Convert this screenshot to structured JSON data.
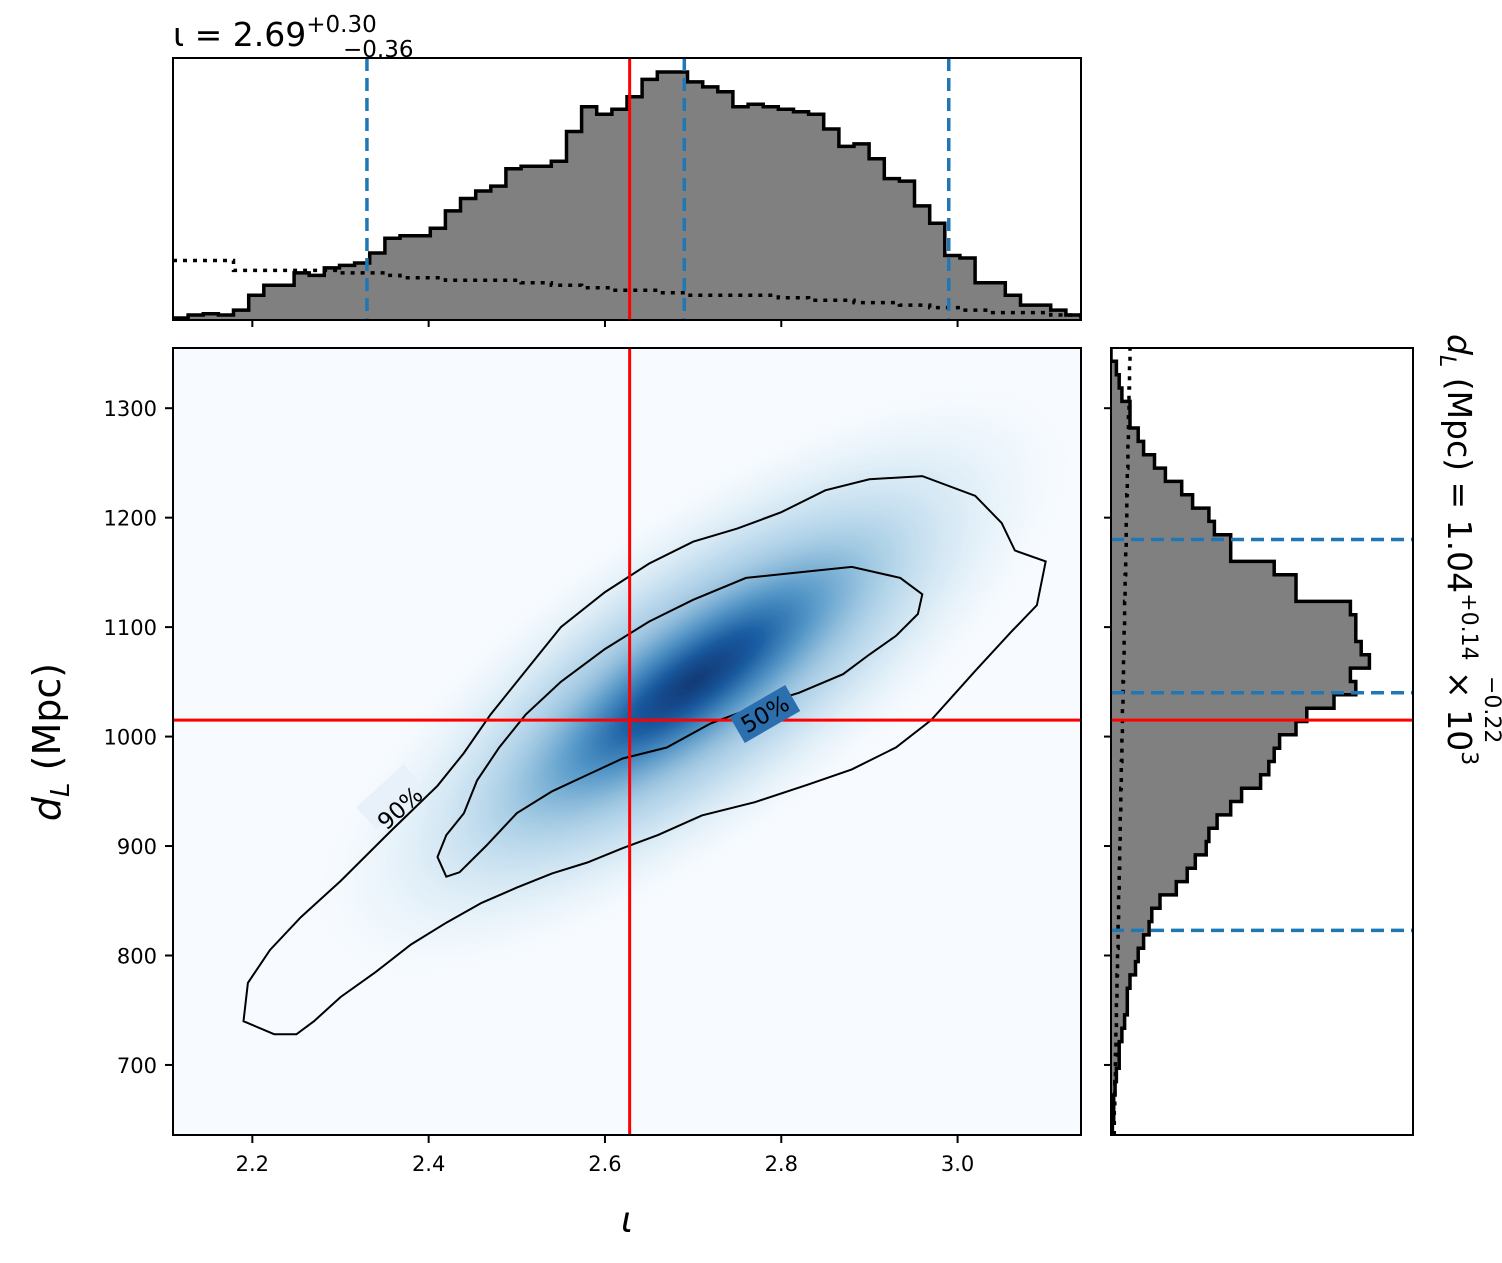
{
  "chart_data": {
    "type": "corner-plot",
    "colors": {
      "density": "#08519c",
      "histogram_fill": "#808080",
      "truth_line": "#ff0000",
      "quantile_line": "#1f77b4",
      "contour": "#000000"
    },
    "top_title": {
      "prefix": "ι = 2.69",
      "sup": "+0.30",
      "sub": "−0.36"
    },
    "right_title": {
      "prefix": "d",
      "prefix_sub": "L",
      "mid": " (Mpc) = 1.04",
      "sup": "+0.14",
      "sub": "−0.22",
      "suffix": " × 10",
      "suffix_sup": "3"
    },
    "xlabel": "ι",
    "ylabel": {
      "main": "d",
      "sub": "L",
      "rest": " (Mpc)"
    },
    "xlim": [
      2.11,
      3.14
    ],
    "ylim": [
      636,
      1355
    ],
    "xticks": [
      {
        "value": 2.2,
        "label": "2.2"
      },
      {
        "value": 2.4,
        "label": "2.4"
      },
      {
        "value": 2.6,
        "label": "2.6"
      },
      {
        "value": 2.8,
        "label": "2.8"
      },
      {
        "value": 3.0,
        "label": "3.0"
      }
    ],
    "yticks": [
      {
        "value": 700,
        "label": "700"
      },
      {
        "value": 800,
        "label": "800"
      },
      {
        "value": 900,
        "label": "900"
      },
      {
        "value": 1000,
        "label": "1000"
      },
      {
        "value": 1100,
        "label": "1100"
      },
      {
        "value": 1200,
        "label": "1200"
      },
      {
        "value": 1300,
        "label": "1300"
      }
    ],
    "truth": {
      "iota": 2.628,
      "dL": 1015
    },
    "iota_quantiles": [
      2.33,
      2.69,
      2.99
    ],
    "dL_quantiles": [
      823,
      1040,
      1180
    ],
    "contour_labels": [
      "90%",
      "50%"
    ],
    "kde_ellipse": {
      "center": [
        2.7,
        1050
      ],
      "angle_deg": 36
    },
    "contours": {
      "c90": [
        [
          2.225,
          728
        ],
        [
          2.19,
          740
        ],
        [
          2.195,
          775
        ],
        [
          2.22,
          805
        ],
        [
          2.255,
          835
        ],
        [
          2.3,
          868
        ],
        [
          2.36,
          916
        ],
        [
          2.41,
          955
        ],
        [
          2.44,
          985
        ],
        [
          2.47,
          1020
        ],
        [
          2.505,
          1055
        ],
        [
          2.55,
          1100
        ],
        [
          2.6,
          1132
        ],
        [
          2.65,
          1158
        ],
        [
          2.7,
          1178
        ],
        [
          2.75,
          1190
        ],
        [
          2.8,
          1205
        ],
        [
          2.85,
          1225
        ],
        [
          2.9,
          1235
        ],
        [
          2.96,
          1238
        ],
        [
          3.02,
          1220
        ],
        [
          3.05,
          1195
        ],
        [
          3.065,
          1170
        ],
        [
          3.1,
          1160
        ],
        [
          3.09,
          1120
        ],
        [
          3.06,
          1095
        ],
        [
          3.02,
          1060
        ],
        [
          2.97,
          1015
        ],
        [
          2.93,
          990
        ],
        [
          2.88,
          970
        ],
        [
          2.83,
          956
        ],
        [
          2.77,
          940
        ],
        [
          2.71,
          928
        ],
        [
          2.66,
          910
        ],
        [
          2.62,
          898
        ],
        [
          2.58,
          885
        ],
        [
          2.54,
          875
        ],
        [
          2.5,
          862
        ],
        [
          2.46,
          848
        ],
        [
          2.42,
          830
        ],
        [
          2.38,
          810
        ],
        [
          2.34,
          785
        ],
        [
          2.3,
          762
        ],
        [
          2.27,
          740
        ],
        [
          2.25,
          728
        ],
        [
          2.225,
          728
        ]
      ],
      "c50": [
        [
          2.42,
          872
        ],
        [
          2.41,
          890
        ],
        [
          2.42,
          910
        ],
        [
          2.44,
          930
        ],
        [
          2.455,
          960
        ],
        [
          2.48,
          990
        ],
        [
          2.51,
          1020
        ],
        [
          2.55,
          1050
        ],
        [
          2.6,
          1080
        ],
        [
          2.65,
          1105
        ],
        [
          2.7,
          1125
        ],
        [
          2.76,
          1145
        ],
        [
          2.82,
          1150
        ],
        [
          2.88,
          1155
        ],
        [
          2.935,
          1145
        ],
        [
          2.96,
          1130
        ],
        [
          2.955,
          1112
        ],
        [
          2.93,
          1092
        ],
        [
          2.9,
          1075
        ],
        [
          2.87,
          1057
        ],
        [
          2.82,
          1040
        ],
        [
          2.78,
          1030
        ],
        [
          2.72,
          1012
        ],
        [
          2.67,
          990
        ],
        [
          2.62,
          980
        ],
        [
          2.58,
          965
        ],
        [
          2.54,
          950
        ],
        [
          2.5,
          930
        ],
        [
          2.465,
          900
        ],
        [
          2.435,
          876
        ],
        [
          2.42,
          872
        ]
      ]
    },
    "top_hist": {
      "x0": 2.11,
      "x1": 3.14,
      "counts": [
        0.008,
        0.02,
        0.025,
        0.02,
        0.04,
        0.1,
        0.14,
        0.14,
        0.19,
        0.18,
        0.21,
        0.22,
        0.23,
        0.27,
        0.33,
        0.34,
        0.34,
        0.37,
        0.44,
        0.49,
        0.52,
        0.54,
        0.61,
        0.62,
        0.62,
        0.64,
        0.76,
        0.86,
        0.83,
        0.85,
        0.9,
        0.97,
        1.0,
        1.0,
        0.96,
        0.94,
        0.92,
        0.86,
        0.87,
        0.86,
        0.85,
        0.84,
        0.83,
        0.77,
        0.7,
        0.71,
        0.65,
        0.57,
        0.56,
        0.46,
        0.39,
        0.26,
        0.25,
        0.15,
        0.15,
        0.1,
        0.06,
        0.06,
        0.04,
        0.02
      ],
      "prior_counts": [
        0.24,
        0.24,
        0.24,
        0.24,
        0.2,
        0.2,
        0.2,
        0.2,
        0.2,
        0.2,
        0.2,
        0.19,
        0.19,
        0.19,
        0.18,
        0.17,
        0.17,
        0.17,
        0.16,
        0.16,
        0.16,
        0.16,
        0.16,
        0.15,
        0.15,
        0.14,
        0.14,
        0.13,
        0.13,
        0.12,
        0.12,
        0.12,
        0.11,
        0.11,
        0.1,
        0.1,
        0.1,
        0.1,
        0.1,
        0.1,
        0.09,
        0.09,
        0.08,
        0.08,
        0.08,
        0.07,
        0.07,
        0.07,
        0.06,
        0.06,
        0.05,
        0.05,
        0.04,
        0.04,
        0.03,
        0.03,
        0.03,
        0.03,
        0.02,
        0.02
      ]
    },
    "right_hist": {
      "y0": 636,
      "y1": 1355,
      "counts": [
        0.005,
        0.01,
        0.01,
        0.015,
        0.02,
        0.03,
        0.03,
        0.04,
        0.05,
        0.06,
        0.06,
        0.07,
        0.09,
        0.1,
        0.12,
        0.14,
        0.15,
        0.18,
        0.24,
        0.28,
        0.31,
        0.35,
        0.36,
        0.39,
        0.44,
        0.48,
        0.55,
        0.58,
        0.6,
        0.62,
        0.68,
        0.72,
        0.82,
        0.9,
        0.88,
        0.95,
        0.92,
        0.9,
        0.9,
        0.88,
        0.68,
        0.68,
        0.6,
        0.44,
        0.44,
        0.38,
        0.36,
        0.3,
        0.26,
        0.2,
        0.16,
        0.12,
        0.1,
        0.07,
        0.07,
        0.04,
        0.03,
        0.02,
        0.0
      ],
      "prior_counts": [
        0.012,
        0.012,
        0.014,
        0.014,
        0.016,
        0.016,
        0.018,
        0.018,
        0.02,
        0.02,
        0.022,
        0.022,
        0.024,
        0.024,
        0.026,
        0.026,
        0.028,
        0.028,
        0.03,
        0.03,
        0.032,
        0.032,
        0.034,
        0.034,
        0.036,
        0.036,
        0.038,
        0.038,
        0.04,
        0.04,
        0.042,
        0.042,
        0.044,
        0.044,
        0.046,
        0.046,
        0.048,
        0.048,
        0.05,
        0.05,
        0.052,
        0.052,
        0.054,
        0.054,
        0.056,
        0.056,
        0.058,
        0.058,
        0.06,
        0.06,
        0.062,
        0.062,
        0.064,
        0.064,
        0.066,
        0.066,
        0.068,
        0.068,
        0.07
      ]
    }
  }
}
